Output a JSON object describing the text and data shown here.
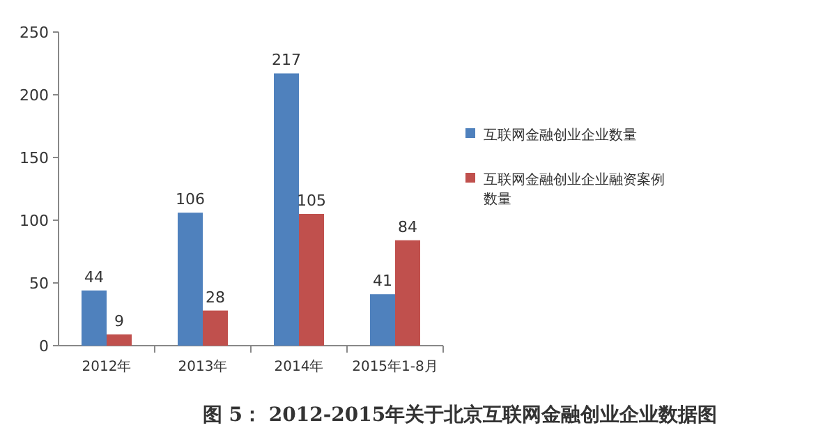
{
  "chart_data": {
    "type": "bar",
    "title": "图 5： 2012-2015年关于北京互联网金融创业企业数据图",
    "categories": [
      "2012年",
      "2013年",
      "2014年",
      "2015年1-8月"
    ],
    "series": [
      {
        "name": "互联网金融创业企业数量",
        "color": "#4f81bd",
        "values": [
          44,
          106,
          217,
          41
        ]
      },
      {
        "name": "互联网金融创业企业融资案例数量",
        "color": "#c0504d",
        "values": [
          9,
          28,
          105,
          84
        ]
      }
    ],
    "ylim": [
      0,
      250
    ],
    "yticks": [
      0,
      50,
      100,
      150,
      200,
      250
    ],
    "data_labels": true,
    "legend": "right"
  }
}
